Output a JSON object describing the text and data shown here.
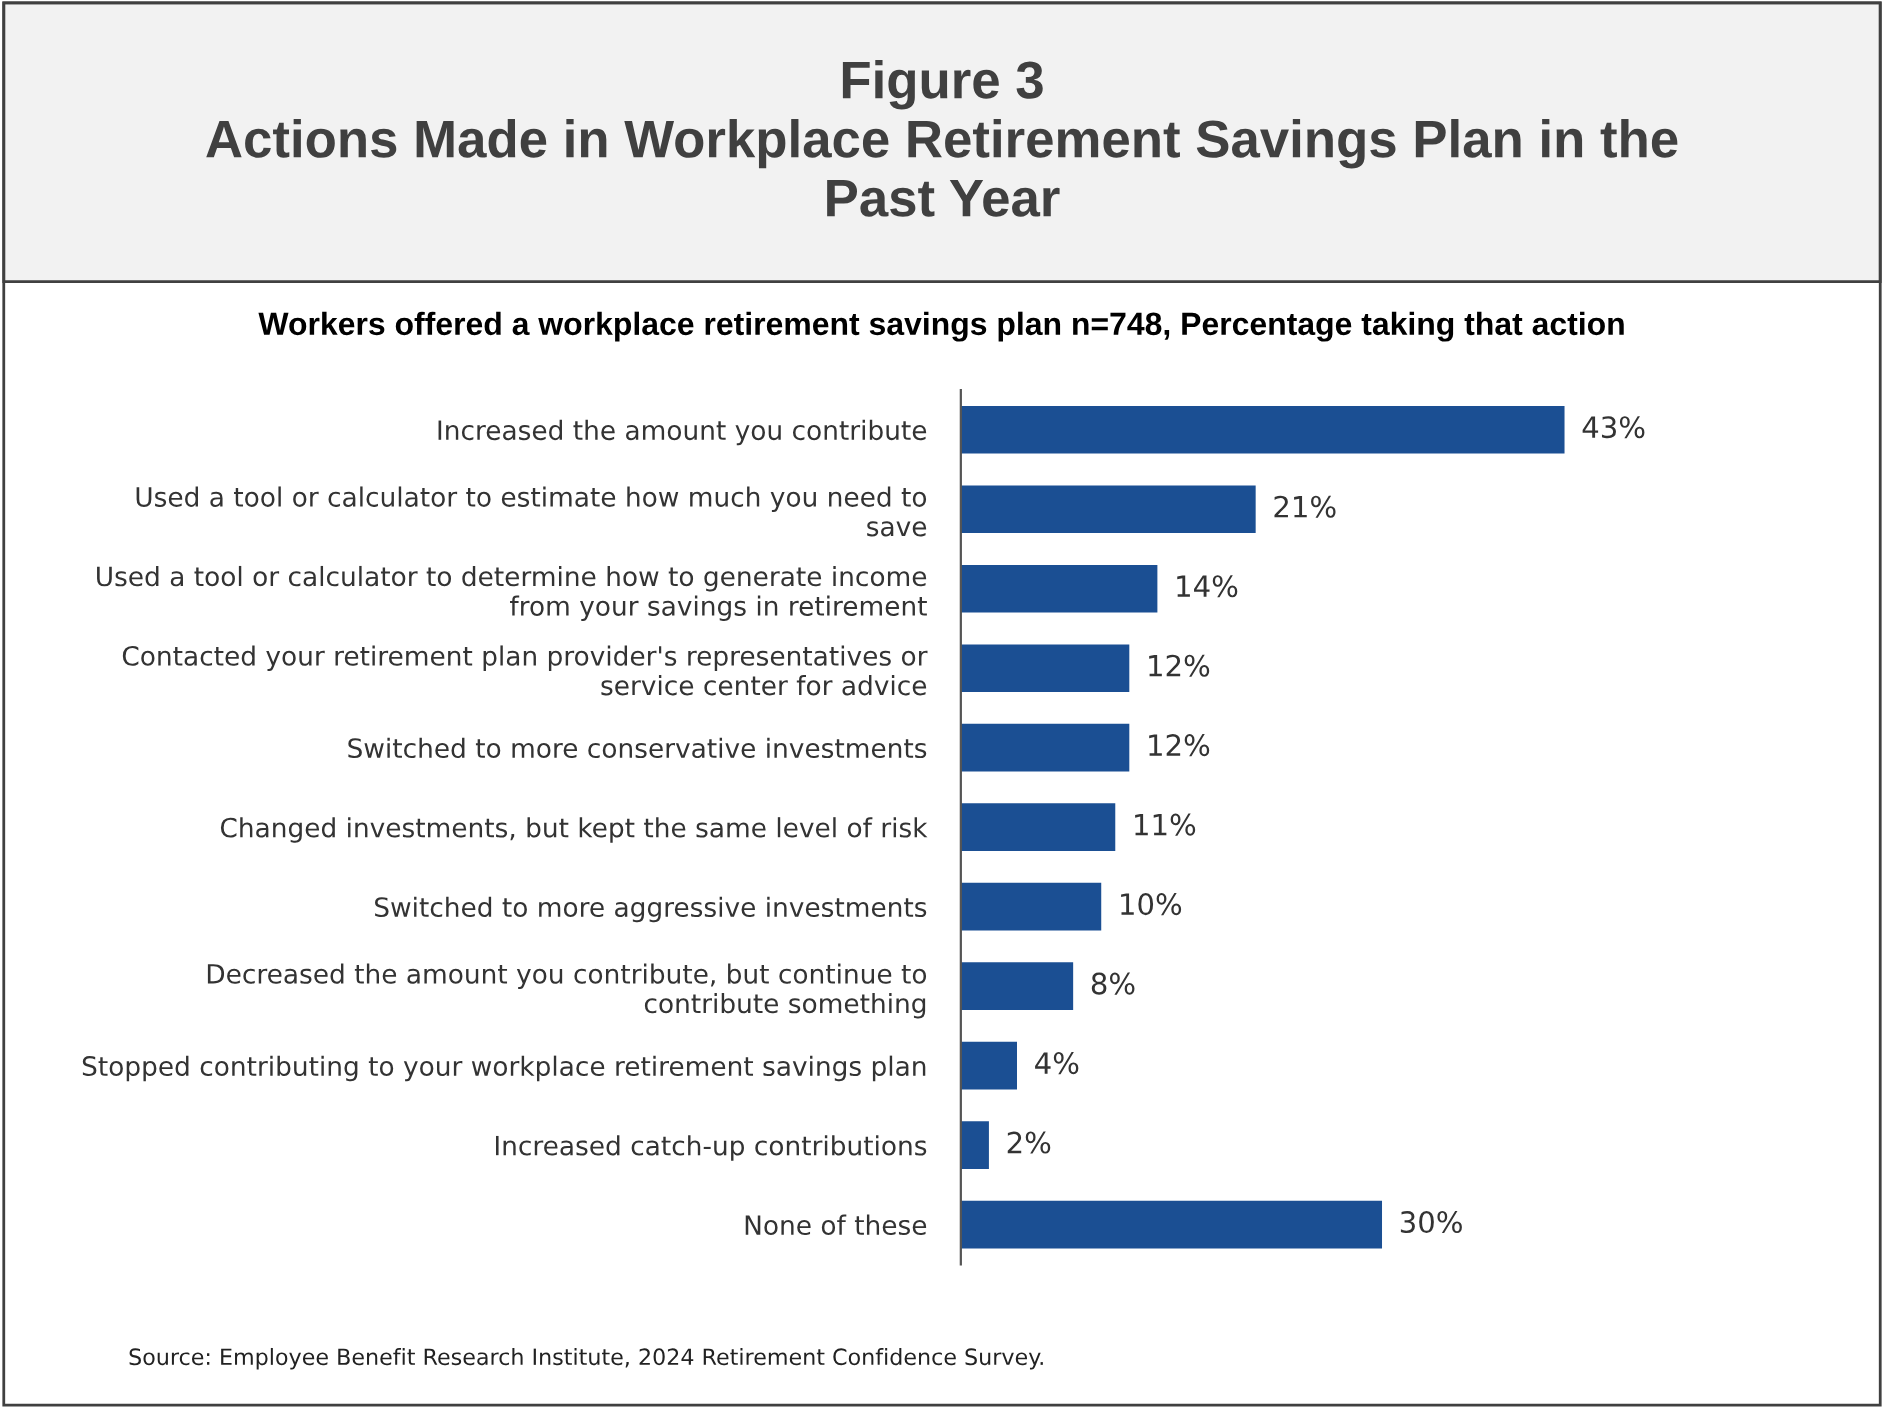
{
  "chart_data": {
    "type": "bar",
    "orientation": "horizontal",
    "title": "Figure 3\nActions Made in Workplace Retirement Savings Plan in the\nPast Year",
    "subtitle": "Workers offered a workplace retirement savings plan n=748, Percentage taking that action",
    "categories": [
      "Increased the amount you contribute",
      "Used a tool or calculator to estimate how much you need to\nsave",
      "Used a tool or calculator to determine how to generate income\nfrom your savings in retirement",
      "Contacted your retirement plan provider's representatives or\nservice center for advice",
      "Switched to more conservative investments",
      "Changed investments, but kept the same level of risk",
      "Switched to more aggressive investments",
      "Decreased the amount you contribute, but continue to\ncontribute something",
      "Stopped contributing to your workplace retirement savings plan",
      "Increased catch-up contributions",
      "None of these"
    ],
    "values": [
      43,
      21,
      14,
      12,
      12,
      11,
      10,
      8,
      4,
      2,
      30
    ],
    "value_labels": [
      "43%",
      "21%",
      "14%",
      "12%",
      "12%",
      "11%",
      "10%",
      "8%",
      "4%",
      "2%",
      "30%"
    ],
    "color": "#1b4f93",
    "grid": false,
    "legend": false,
    "annotations": [
      "Source: Employee Benefit Research Institute, 2024 Retirement Confidence Survey."
    ]
  }
}
